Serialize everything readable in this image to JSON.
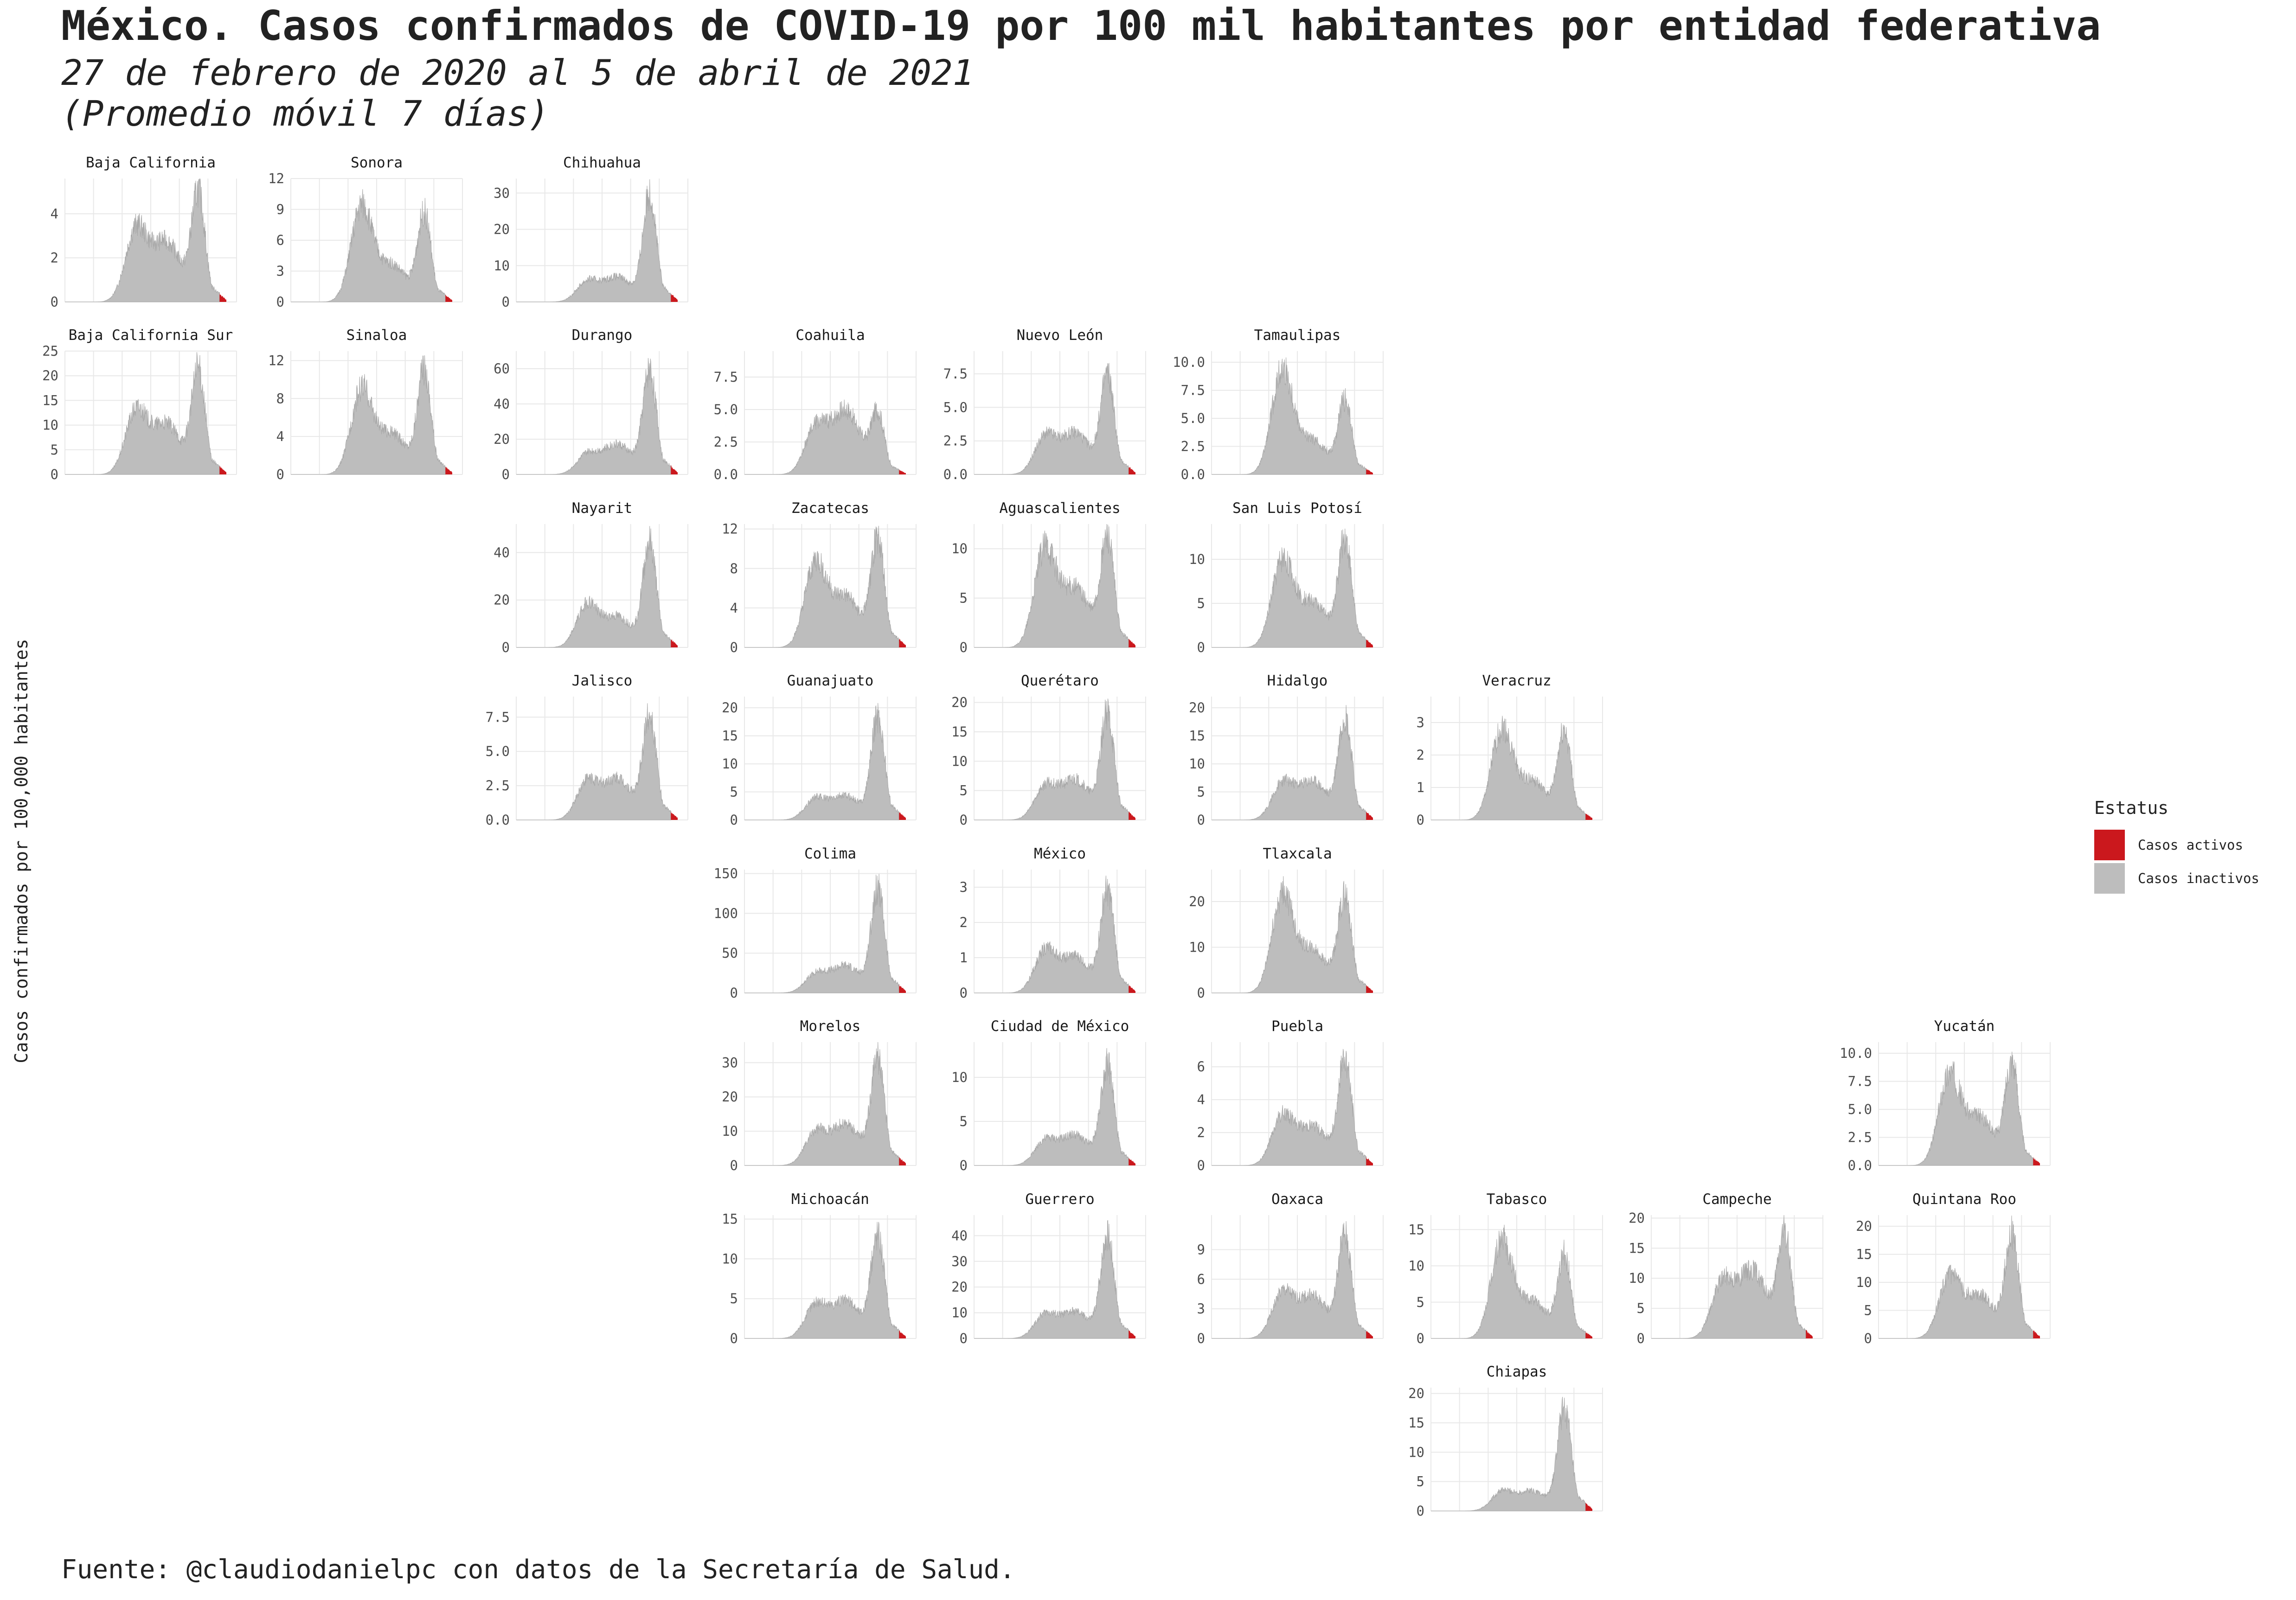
{
  "colors": {
    "active": "#cb181d",
    "inactive": "#bdbdbd",
    "grid": "#e8e8e8",
    "text": "#222222"
  },
  "chart_data": {
    "type": "area",
    "title": "México. Casos confirmados de COVID-19 por 100 mil habitantes por entidad federativa",
    "subtitle_line1": "27 de febrero de 2020 al 5 de abril de 2021",
    "subtitle_line2": "(Promedio móvil 7 días)",
    "ylabel": "Casos confirmados por 100,000 habitantes",
    "caption": "Fuente: @claudiodanielpc con datos de la Secretaría de Salud.",
    "date_range": [
      "2020-02-27",
      "2021-04-05"
    ],
    "legend": {
      "title": "Estatus",
      "placement": "right",
      "entries": [
        {
          "label": "Casos activos",
          "color": "#cb181d"
        },
        {
          "label": "Casos inactivos",
          "color": "#bdbdbd"
        }
      ]
    },
    "facets": [
      {
        "name": "Baja California",
        "row": 0,
        "col": 0,
        "ymax": 5.6,
        "yticks": [
          "0",
          "2",
          "4"
        ],
        "peaks": [
          3.6,
          3.2,
          5.6
        ]
      },
      {
        "name": "Sonora",
        "row": 0,
        "col": 1,
        "ymax": 12,
        "yticks": [
          "0",
          "3",
          "6",
          "9",
          "12"
        ],
        "peaks": [
          10.5,
          4.2,
          9.8
        ]
      },
      {
        "name": "Chihuahua",
        "row": 0,
        "col": 2,
        "ymax": 34,
        "yticks": [
          "0",
          "10",
          "20",
          "30"
        ],
        "peaks": [
          6,
          8,
          34
        ]
      },
      {
        "name": "Baja California Sur",
        "row": 1,
        "col": 0,
        "ymax": 25,
        "yticks": [
          "0",
          "5",
          "10",
          "15",
          "20",
          "25"
        ],
        "peaks": [
          14,
          12,
          24
        ]
      },
      {
        "name": "Sinaloa",
        "row": 1,
        "col": 1,
        "ymax": 13,
        "yticks": [
          "0",
          "4",
          "8",
          "12"
        ],
        "peaks": [
          10,
          5,
          12.5
        ]
      },
      {
        "name": "Durango",
        "row": 1,
        "col": 2,
        "ymax": 70,
        "yticks": [
          "0",
          "20",
          "40",
          "60"
        ],
        "peaks": [
          12,
          20,
          68
        ]
      },
      {
        "name": "Coahuila",
        "row": 1,
        "col": 3,
        "ymax": 9.5,
        "yticks": [
          "0.0",
          "2.5",
          "5.0",
          "7.5"
        ],
        "peaks": [
          3.8,
          5.8,
          5.2
        ]
      },
      {
        "name": "Nuevo León",
        "row": 1,
        "col": 4,
        "ymax": 9.2,
        "yticks": [
          "0.0",
          "2.5",
          "5.0",
          "7.5"
        ],
        "peaks": [
          3,
          3.6,
          8.4
        ]
      },
      {
        "name": "Tamaulipas",
        "row": 1,
        "col": 5,
        "ymax": 11,
        "yticks": [
          "0.0",
          "2.5",
          "5.0",
          "7.5",
          "10.0"
        ],
        "peaks": [
          10.5,
          3.5,
          7.4
        ]
      },
      {
        "name": "Nayarit",
        "row": 2,
        "col": 2,
        "ymax": 52,
        "yticks": [
          "0",
          "20",
          "40"
        ],
        "peaks": [
          20,
          15,
          50
        ]
      },
      {
        "name": "Zacatecas",
        "row": 2,
        "col": 3,
        "ymax": 12.5,
        "yticks": [
          "0",
          "4",
          "8",
          "12"
        ],
        "peaks": [
          9.5,
          6,
          12.5
        ]
      },
      {
        "name": "Aguascalientes",
        "row": 2,
        "col": 4,
        "ymax": 12.5,
        "yticks": [
          "0",
          "5",
          "10"
        ],
        "peaks": [
          11,
          7,
          12.5
        ]
      },
      {
        "name": "San Luis Potosí",
        "row": 2,
        "col": 5,
        "ymax": 14,
        "yticks": [
          "0",
          "5",
          "10"
        ],
        "peaks": [
          11,
          6,
          14
        ]
      },
      {
        "name": "Jalisco",
        "row": 3,
        "col": 2,
        "ymax": 9,
        "yticks": [
          "0.0",
          "2.5",
          "5.0",
          "7.5"
        ],
        "peaks": [
          3,
          3.5,
          8.8
        ]
      },
      {
        "name": "Guanajuato",
        "row": 3,
        "col": 3,
        "ymax": 22,
        "yticks": [
          "0",
          "5",
          "10",
          "15",
          "20"
        ],
        "peaks": [
          4,
          5,
          21
        ]
      },
      {
        "name": "Querétaro",
        "row": 3,
        "col": 4,
        "ymax": 21,
        "yticks": [
          "0",
          "5",
          "10",
          "15",
          "20"
        ],
        "peaks": [
          6,
          8,
          20.5
        ]
      },
      {
        "name": "Hidalgo",
        "row": 3,
        "col": 5,
        "ymax": 22,
        "yticks": [
          "0",
          "5",
          "10",
          "15",
          "20"
        ],
        "peaks": [
          7,
          8,
          21
        ]
      },
      {
        "name": "Veracruz",
        "row": 3,
        "col": 6,
        "ymax": 3.8,
        "yticks": [
          "0",
          "1",
          "2",
          "3"
        ],
        "peaks": [
          3.1,
          1.4,
          3.1
        ]
      },
      {
        "name": "Colima",
        "row": 4,
        "col": 3,
        "ymax": 155,
        "yticks": [
          "0",
          "50",
          "100",
          "150"
        ],
        "peaks": [
          25,
          40,
          150
        ]
      },
      {
        "name": "México",
        "row": 4,
        "col": 4,
        "ymax": 3.5,
        "yticks": [
          "0",
          "1",
          "2",
          "3"
        ],
        "peaks": [
          1.3,
          1.2,
          3.3
        ]
      },
      {
        "name": "Tlaxcala",
        "row": 4,
        "col": 5,
        "ymax": 27,
        "yticks": [
          "0",
          "10",
          "20"
        ],
        "peaks": [
          24,
          11,
          24
        ]
      },
      {
        "name": "Morelos",
        "row": 5,
        "col": 3,
        "ymax": 36,
        "yticks": [
          "0",
          "10",
          "20",
          "30"
        ],
        "peaks": [
          10,
          14,
          35
        ]
      },
      {
        "name": "Ciudad de México",
        "row": 5,
        "col": 4,
        "ymax": 14,
        "yticks": [
          "0",
          "5",
          "10"
        ],
        "peaks": [
          3,
          4,
          13
        ]
      },
      {
        "name": "Puebla",
        "row": 5,
        "col": 5,
        "ymax": 7.5,
        "yticks": [
          "0",
          "2",
          "4",
          "6"
        ],
        "peaks": [
          3.3,
          2.8,
          7.4
        ]
      },
      {
        "name": "Yucatán",
        "row": 5,
        "col": 8,
        "ymax": 11,
        "yticks": [
          "0.0",
          "2.5",
          "5.0",
          "7.5",
          "10.0"
        ],
        "peaks": [
          9,
          5,
          10.5
        ]
      },
      {
        "name": "Michoacán",
        "row": 6,
        "col": 3,
        "ymax": 15.5,
        "yticks": [
          "0",
          "5",
          "10",
          "15"
        ],
        "peaks": [
          4.5,
          5.5,
          14.8
        ]
      },
      {
        "name": "Guerrero",
        "row": 6,
        "col": 4,
        "ymax": 48,
        "yticks": [
          "0",
          "10",
          "20",
          "30",
          "40"
        ],
        "peaks": [
          10,
          12,
          46
        ]
      },
      {
        "name": "Oaxaca",
        "row": 6,
        "col": 5,
        "ymax": 12.5,
        "yticks": [
          "0",
          "3",
          "6",
          "9"
        ],
        "peaks": [
          5,
          5,
          11.8
        ]
      },
      {
        "name": "Tabasco",
        "row": 6,
        "col": 6,
        "ymax": 17,
        "yticks": [
          "0",
          "5",
          "10",
          "15"
        ],
        "peaks": [
          15,
          6,
          13
        ]
      },
      {
        "name": "Campeche",
        "row": 6,
        "col": 7,
        "ymax": 20.5,
        "yticks": [
          "0",
          "5",
          "10",
          "15",
          "20"
        ],
        "peaks": [
          10,
          13,
          19.5
        ]
      },
      {
        "name": "Quintana Roo",
        "row": 6,
        "col": 8,
        "ymax": 22,
        "yticks": [
          "0",
          "5",
          "10",
          "15",
          "20"
        ],
        "peaks": [
          12,
          9,
          21
        ]
      },
      {
        "name": "Chiapas",
        "row": 7,
        "col": 6,
        "ymax": 21,
        "yticks": [
          "0",
          "5",
          "10",
          "15",
          "20"
        ],
        "peaks": [
          3.5,
          4,
          20
        ]
      }
    ]
  }
}
